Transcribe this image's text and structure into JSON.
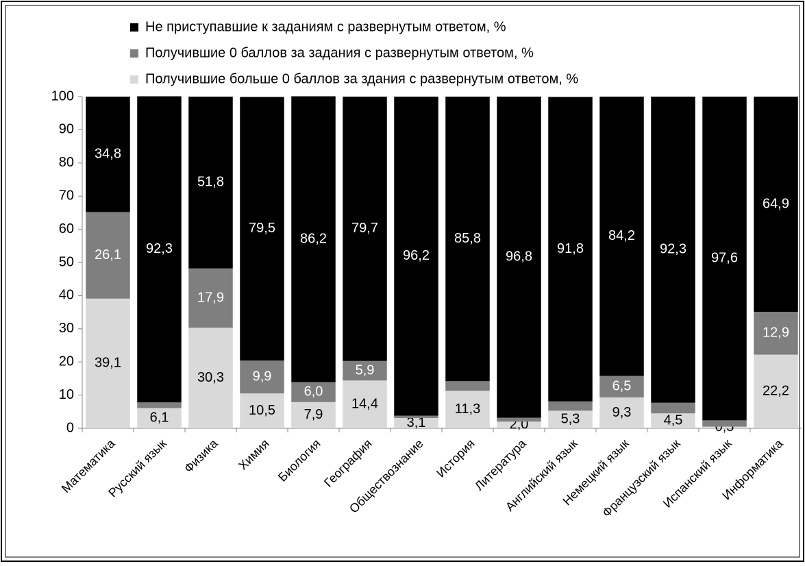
{
  "chart_data": {
    "type": "stacked_bar",
    "categories": [
      "Математика",
      "Русский язык",
      "Физика",
      "Химия",
      "Биология",
      "География",
      "Обществознание",
      "История",
      "Литература",
      "Английский язык",
      "Немецкий язык",
      "Французский язык",
      "Испанский язык",
      "Информатика"
    ],
    "series": [
      {
        "name": "Не приступавшие к заданиям с развернутым ответом, %",
        "color": "#000000",
        "label_color": "#ffffff",
        "values": [
          34.8,
          92.3,
          51.8,
          79.5,
          86.2,
          79.7,
          96.2,
          85.8,
          96.8,
          91.8,
          84.2,
          92.3,
          97.6,
          64.9
        ],
        "value_labels": [
          "34,8",
          "92,3",
          "51,8",
          "79,5",
          "86,2",
          "79,7",
          "96,2",
          "85,8",
          "96,8",
          "91,8",
          "84,2",
          "92,3",
          "97,6",
          "64,9"
        ]
      },
      {
        "name": "Получившие 0 баллов за задания с развернутым ответом, %",
        "color": "#7f7f7f",
        "label_color": "#ffffff",
        "values": [
          26.1,
          1.7,
          17.9,
          9.9,
          6.0,
          5.9,
          0.7,
          2.9,
          1.2,
          2.8,
          6.5,
          3.2,
          1.9,
          12.9
        ],
        "value_labels": [
          "26,1",
          "1,7",
          "17,9",
          "9,9",
          "6,0",
          "5,9",
          "0,7",
          "2,9",
          "1,2",
          "2,8",
          "6,5",
          "3,2",
          "1,9",
          "12,9"
        ]
      },
      {
        "name": "Получившие больше 0 баллов за здания с развернутым ответом, %",
        "color": "#d9d9d9",
        "label_color": "#000000",
        "values": [
          39.1,
          6.1,
          30.3,
          10.5,
          7.9,
          14.4,
          3.1,
          11.3,
          2.0,
          5.3,
          9.3,
          4.5,
          0.5,
          22.2
        ],
        "value_labels": [
          "39,1",
          "6,1",
          "30,3",
          "10,5",
          "7,9",
          "14,4",
          "3,1",
          "11,3",
          "2,0",
          "5,3",
          "9,3",
          "4,5",
          "0,5",
          "22,2"
        ]
      }
    ],
    "ylim": [
      0,
      100
    ],
    "yticks": [
      0,
      10,
      20,
      30,
      40,
      50,
      60,
      70,
      80,
      90,
      100
    ]
  }
}
